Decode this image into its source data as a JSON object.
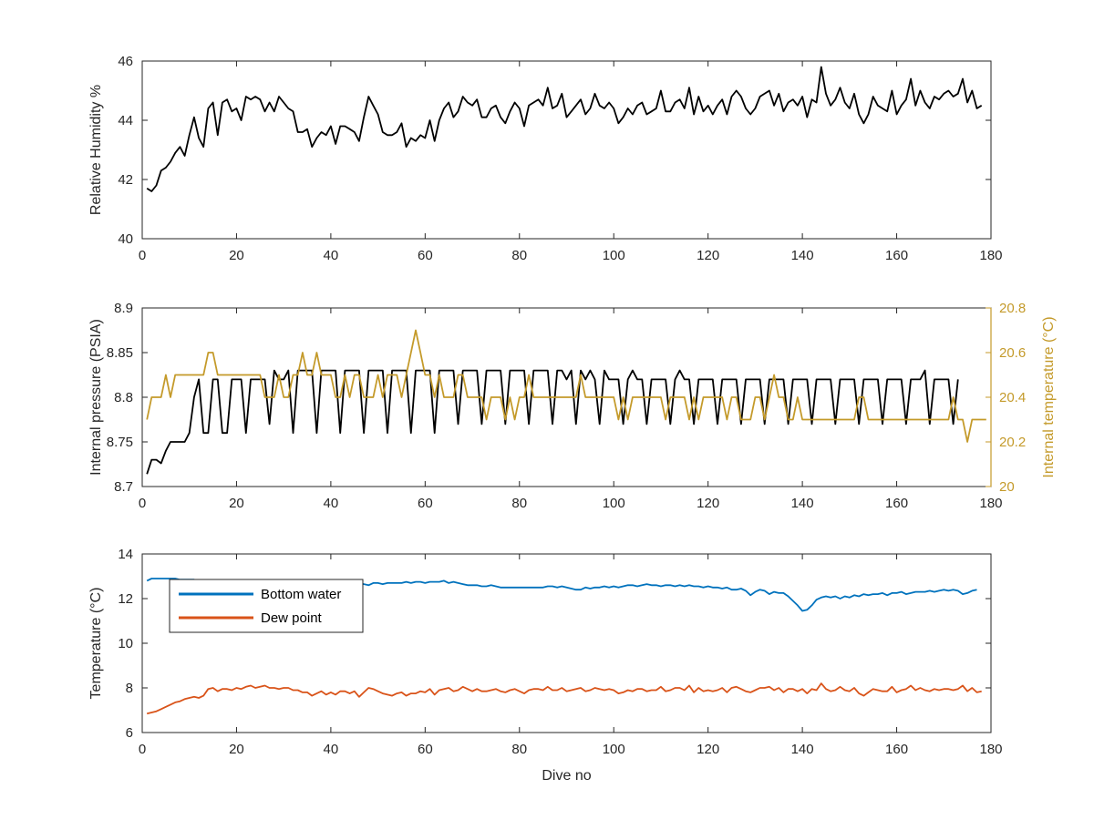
{
  "colors": {
    "black": "#000000",
    "gold": "#C49A2A",
    "blue": "#0072BD",
    "orange": "#D95319",
    "axis": "#262626",
    "right_axis": "#C49A2A"
  },
  "chart_data": [
    {
      "type": "line",
      "panel": "top",
      "xlabel": "",
      "ylabel": "Relative Humidity %",
      "xlim": [
        0,
        180
      ],
      "ylim": [
        40,
        46
      ],
      "xticks": [
        "0",
        "20",
        "40",
        "60",
        "80",
        "100",
        "120",
        "140",
        "160",
        "180"
      ],
      "yticks": [
        "40",
        "42",
        "44",
        "46"
      ],
      "grid": false,
      "series": [
        {
          "color": "#000000",
          "x_start": 1,
          "x_step": 1,
          "values": [
            41.7,
            41.6,
            41.8,
            42.3,
            42.4,
            42.6,
            42.9,
            43.1,
            42.8,
            43.5,
            44.1,
            43.4,
            43.1,
            44.4,
            44.6,
            43.5,
            44.6,
            44.7,
            44.3,
            44.4,
            44.0,
            44.8,
            44.7,
            44.8,
            44.7,
            44.3,
            44.6,
            44.3,
            44.8,
            44.6,
            44.4,
            44.3,
            43.6,
            43.6,
            43.7,
            43.1,
            43.4,
            43.6,
            43.5,
            43.8,
            43.2,
            43.8,
            43.8,
            43.7,
            43.6,
            43.3,
            44.1,
            44.8,
            44.5,
            44.2,
            43.6,
            43.5,
            43.5,
            43.6,
            43.9,
            43.1,
            43.4,
            43.3,
            43.5,
            43.4,
            44.0,
            43.3,
            44.0,
            44.4,
            44.6,
            44.1,
            44.3,
            44.8,
            44.6,
            44.5,
            44.7,
            44.1,
            44.1,
            44.4,
            44.5,
            44.1,
            43.9,
            44.3,
            44.6,
            44.4,
            43.8,
            44.5,
            44.6,
            44.7,
            44.5,
            45.1,
            44.4,
            44.5,
            44.9,
            44.1,
            44.3,
            44.5,
            44.7,
            44.2,
            44.4,
            44.9,
            44.5,
            44.4,
            44.6,
            44.4,
            43.9,
            44.1,
            44.4,
            44.2,
            44.5,
            44.6,
            44.2,
            44.3,
            44.4,
            45.0,
            44.3,
            44.3,
            44.6,
            44.7,
            44.4,
            45.1,
            44.2,
            44.8,
            44.3,
            44.5,
            44.2,
            44.5,
            44.7,
            44.2,
            44.8,
            45.0,
            44.8,
            44.4,
            44.2,
            44.4,
            44.8,
            44.9,
            45.0,
            44.5,
            44.9,
            44.3,
            44.6,
            44.7,
            44.5,
            44.8,
            44.1,
            44.7,
            44.6,
            45.8,
            44.9,
            44.5,
            44.7,
            45.1,
            44.6,
            44.4,
            44.9,
            44.2,
            43.9,
            44.2,
            44.8,
            44.5,
            44.4,
            44.3,
            45.0,
            44.2,
            44.5,
            44.7,
            45.4,
            44.5,
            45.0,
            44.6,
            44.4,
            44.8,
            44.7,
            44.9,
            45.0,
            44.8,
            44.9,
            45.4,
            44.6,
            45.0,
            44.4,
            44.5
          ]
        }
      ]
    },
    {
      "type": "line",
      "panel": "middle",
      "xlabel": "",
      "ylabel": "Internal pressure (PSIA)",
      "ylabel_right": "Internal temperature (°C)",
      "xlim": [
        0,
        180
      ],
      "ylim": [
        8.7,
        8.9
      ],
      "ylim_right": [
        20,
        20.8
      ],
      "xticks": [
        "0",
        "20",
        "40",
        "60",
        "80",
        "100",
        "120",
        "140",
        "160",
        "180"
      ],
      "yticks": [
        "8.7",
        "8.75",
        "8.8",
        "8.85",
        "8.9"
      ],
      "yticks_right": [
        "20",
        "20.2",
        "20.4",
        "20.6",
        "20.8"
      ],
      "grid": false,
      "series": [
        {
          "axis": "left",
          "color": "#000000",
          "x_start": 1,
          "x_step": 1,
          "values": [
            8.714,
            8.73,
            8.73,
            8.726,
            8.74,
            8.75,
            8.75,
            8.75,
            8.75,
            8.76,
            8.8,
            8.82,
            8.76,
            8.76,
            8.82,
            8.82,
            8.76,
            8.76,
            8.82,
            8.82,
            8.82,
            8.76,
            8.82,
            8.82,
            8.82,
            8.82,
            8.77,
            8.83,
            8.82,
            8.82,
            8.83,
            8.76,
            8.83,
            8.83,
            8.83,
            8.83,
            8.76,
            8.83,
            8.83,
            8.83,
            8.83,
            8.76,
            8.83,
            8.83,
            8.83,
            8.83,
            8.76,
            8.83,
            8.83,
            8.83,
            8.83,
            8.76,
            8.83,
            8.83,
            8.83,
            8.83,
            8.76,
            8.83,
            8.83,
            8.83,
            8.83,
            8.76,
            8.83,
            8.83,
            8.83,
            8.83,
            8.77,
            8.83,
            8.83,
            8.83,
            8.83,
            8.77,
            8.83,
            8.83,
            8.83,
            8.83,
            8.77,
            8.83,
            8.83,
            8.83,
            8.83,
            8.77,
            8.83,
            8.83,
            8.83,
            8.83,
            8.77,
            8.83,
            8.83,
            8.82,
            8.83,
            8.77,
            8.83,
            8.82,
            8.83,
            8.82,
            8.77,
            8.83,
            8.82,
            8.82,
            8.82,
            8.77,
            8.82,
            8.83,
            8.82,
            8.82,
            8.77,
            8.82,
            8.82,
            8.82,
            8.82,
            8.77,
            8.82,
            8.83,
            8.82,
            8.82,
            8.77,
            8.82,
            8.82,
            8.82,
            8.82,
            8.77,
            8.82,
            8.82,
            8.82,
            8.82,
            8.77,
            8.82,
            8.82,
            8.82,
            8.82,
            8.77,
            8.82,
            8.82,
            8.82,
            8.82,
            8.77,
            8.82,
            8.82,
            8.82,
            8.82,
            8.77,
            8.82,
            8.82,
            8.82,
            8.82,
            8.77,
            8.82,
            8.82,
            8.82,
            8.82,
            8.77,
            8.82,
            8.82,
            8.82,
            8.82,
            8.77,
            8.82,
            8.82,
            8.82,
            8.82,
            8.77,
            8.82,
            8.82,
            8.82,
            8.83,
            8.77,
            8.82,
            8.82,
            8.82,
            8.82,
            8.77,
            8.82
          ]
        },
        {
          "axis": "right",
          "color": "#C49A2A",
          "x_start": 1,
          "x_step": 1,
          "values": [
            20.3,
            20.4,
            20.4,
            20.4,
            20.5,
            20.4,
            20.5,
            20.5,
            20.5,
            20.5,
            20.5,
            20.5,
            20.5,
            20.6,
            20.6,
            20.5,
            20.5,
            20.5,
            20.5,
            20.5,
            20.5,
            20.5,
            20.5,
            20.5,
            20.5,
            20.4,
            20.4,
            20.4,
            20.5,
            20.4,
            20.4,
            20.5,
            20.5,
            20.6,
            20.5,
            20.5,
            20.6,
            20.5,
            20.5,
            20.5,
            20.4,
            20.4,
            20.5,
            20.4,
            20.5,
            20.5,
            20.4,
            20.4,
            20.4,
            20.5,
            20.4,
            20.5,
            20.5,
            20.5,
            20.4,
            20.5,
            20.6,
            20.7,
            20.6,
            20.5,
            20.5,
            20.4,
            20.5,
            20.4,
            20.4,
            20.4,
            20.5,
            20.5,
            20.4,
            20.4,
            20.4,
            20.4,
            20.3,
            20.4,
            20.4,
            20.4,
            20.3,
            20.4,
            20.3,
            20.4,
            20.4,
            20.5,
            20.4,
            20.4,
            20.4,
            20.4,
            20.4,
            20.4,
            20.4,
            20.4,
            20.4,
            20.4,
            20.5,
            20.4,
            20.4,
            20.4,
            20.4,
            20.4,
            20.4,
            20.4,
            20.3,
            20.4,
            20.3,
            20.4,
            20.4,
            20.4,
            20.4,
            20.4,
            20.4,
            20.4,
            20.3,
            20.4,
            20.4,
            20.4,
            20.4,
            20.3,
            20.4,
            20.3,
            20.4,
            20.4,
            20.4,
            20.4,
            20.4,
            20.3,
            20.4,
            20.4,
            20.3,
            20.3,
            20.3,
            20.4,
            20.4,
            20.3,
            20.4,
            20.5,
            20.4,
            20.4,
            20.3,
            20.3,
            20.4,
            20.3,
            20.3,
            20.3,
            20.3,
            20.3,
            20.3,
            20.3,
            20.3,
            20.3,
            20.3,
            20.3,
            20.3,
            20.4,
            20.4,
            20.3,
            20.3,
            20.3,
            20.3,
            20.3,
            20.3,
            20.3,
            20.3,
            20.3,
            20.3,
            20.3,
            20.3,
            20.3,
            20.3,
            20.3,
            20.3,
            20.3,
            20.3,
            20.4,
            20.3,
            20.3,
            20.2,
            20.3,
            20.3,
            20.3,
            20.3
          ]
        }
      ]
    },
    {
      "type": "line",
      "panel": "bottom",
      "xlabel": "Dive no",
      "ylabel": "Temperature (°C)",
      "xlim": [
        0,
        180
      ],
      "ylim": [
        6,
        14
      ],
      "xticks": [
        "0",
        "20",
        "40",
        "60",
        "80",
        "100",
        "120",
        "140",
        "160",
        "180"
      ],
      "yticks": [
        "6",
        "8",
        "10",
        "12",
        "14"
      ],
      "grid": false,
      "legend_position": "top-left",
      "series": [
        {
          "name": "Bottom water",
          "color": "#0072BD",
          "x_start": 1,
          "x_step": 1,
          "values": [
            12.8,
            12.9,
            12.9,
            12.9,
            12.9,
            12.9,
            12.9,
            12.85,
            12.85,
            12.85,
            12.85,
            12.8,
            12.8,
            12.8,
            12.8,
            12.8,
            12.8,
            12.8,
            12.8,
            12.8,
            12.75,
            12.75,
            12.75,
            12.75,
            12.75,
            12.75,
            12.8,
            12.8,
            12.8,
            12.8,
            12.8,
            12.8,
            12.8,
            12.8,
            12.8,
            12.8,
            12.8,
            12.8,
            12.8,
            12.75,
            12.75,
            12.75,
            12.7,
            12.7,
            12.7,
            12.7,
            12.65,
            12.6,
            12.7,
            12.7,
            12.65,
            12.7,
            12.7,
            12.7,
            12.7,
            12.75,
            12.7,
            12.75,
            12.75,
            12.7,
            12.75,
            12.75,
            12.75,
            12.8,
            12.7,
            12.75,
            12.7,
            12.65,
            12.6,
            12.6,
            12.6,
            12.55,
            12.55,
            12.6,
            12.55,
            12.5,
            12.5,
            12.5,
            12.5,
            12.5,
            12.5,
            12.5,
            12.5,
            12.5,
            12.5,
            12.55,
            12.55,
            12.5,
            12.55,
            12.5,
            12.45,
            12.4,
            12.4,
            12.5,
            12.45,
            12.5,
            12.5,
            12.55,
            12.5,
            12.55,
            12.5,
            12.55,
            12.6,
            12.6,
            12.55,
            12.6,
            12.65,
            12.6,
            12.6,
            12.55,
            12.6,
            12.6,
            12.55,
            12.6,
            12.55,
            12.6,
            12.55,
            12.55,
            12.5,
            12.55,
            12.5,
            12.5,
            12.45,
            12.5,
            12.4,
            12.4,
            12.45,
            12.35,
            12.15,
            12.3,
            12.4,
            12.35,
            12.2,
            12.3,
            12.25,
            12.25,
            12.1,
            11.9,
            11.7,
            11.45,
            11.5,
            11.7,
            11.95,
            12.05,
            12.1,
            12.05,
            12.1,
            12.0,
            12.1,
            12.05,
            12.15,
            12.1,
            12.2,
            12.15,
            12.2,
            12.2,
            12.25,
            12.15,
            12.25,
            12.25,
            12.3,
            12.2,
            12.25,
            12.3,
            12.3,
            12.3,
            12.35,
            12.3,
            12.35,
            12.4,
            12.35,
            12.4,
            12.35,
            12.2,
            12.25,
            12.35,
            12.4
          ]
        },
        {
          "name": "Dew point",
          "color": "#D95319",
          "x_start": 1,
          "x_step": 1,
          "values": [
            6.85,
            6.9,
            6.95,
            7.05,
            7.15,
            7.25,
            7.35,
            7.4,
            7.5,
            7.55,
            7.6,
            7.55,
            7.65,
            7.95,
            8.0,
            7.85,
            7.95,
            7.95,
            7.9,
            8.0,
            7.95,
            8.05,
            8.1,
            8.0,
            8.05,
            8.1,
            8.0,
            8.0,
            7.95,
            8.0,
            8.0,
            7.9,
            7.9,
            7.8,
            7.8,
            7.65,
            7.75,
            7.85,
            7.7,
            7.8,
            7.7,
            7.85,
            7.85,
            7.75,
            7.85,
            7.6,
            7.8,
            8.0,
            7.95,
            7.85,
            7.75,
            7.7,
            7.65,
            7.75,
            7.8,
            7.65,
            7.75,
            7.75,
            7.85,
            7.8,
            7.95,
            7.7,
            7.9,
            7.95,
            8.0,
            7.85,
            7.9,
            8.05,
            7.95,
            7.85,
            7.95,
            7.85,
            7.85,
            7.9,
            7.95,
            7.85,
            7.8,
            7.9,
            7.95,
            7.85,
            7.75,
            7.9,
            7.95,
            7.95,
            7.9,
            8.05,
            7.9,
            7.9,
            8.0,
            7.85,
            7.9,
            7.95,
            8.0,
            7.85,
            7.9,
            8.0,
            7.95,
            7.9,
            7.95,
            7.9,
            7.75,
            7.8,
            7.9,
            7.85,
            7.95,
            7.95,
            7.85,
            7.9,
            7.9,
            8.05,
            7.85,
            7.9,
            8.0,
            8.0,
            7.9,
            8.1,
            7.8,
            8.0,
            7.85,
            7.9,
            7.85,
            7.9,
            8.0,
            7.8,
            8.0,
            8.05,
            7.95,
            7.85,
            7.8,
            7.9,
            8.0,
            8.0,
            8.05,
            7.9,
            8.0,
            7.8,
            7.95,
            7.95,
            7.85,
            7.95,
            7.75,
            7.95,
            7.9,
            8.2,
            7.95,
            7.85,
            7.9,
            8.05,
            7.9,
            7.85,
            8.0,
            7.75,
            7.65,
            7.8,
            7.95,
            7.9,
            7.85,
            7.85,
            8.05,
            7.8,
            7.9,
            7.95,
            8.1,
            7.9,
            8.0,
            7.9,
            7.85,
            7.95,
            7.9,
            7.95,
            7.95,
            7.9,
            7.95,
            8.1,
            7.85,
            8.0,
            7.8,
            7.85
          ]
        }
      ]
    }
  ]
}
